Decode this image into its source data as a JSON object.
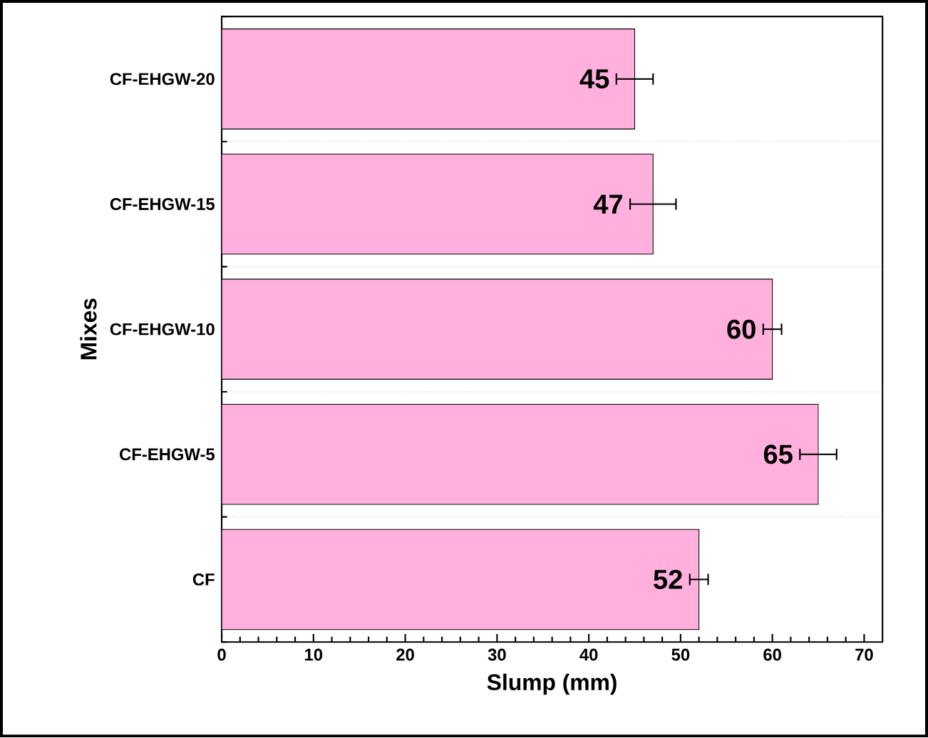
{
  "chart_data": {
    "type": "bar",
    "orientation": "horizontal",
    "xlabel": "Slump (mm)",
    "ylabel": "Mixes",
    "categories": [
      "CF-EHGW-20",
      "CF-EHGW-15",
      "CF-EHGW-10",
      "CF-EHGW-5",
      "CF"
    ],
    "values": [
      45,
      47,
      60,
      65,
      52
    ],
    "errors": [
      2,
      2.5,
      1,
      2,
      1
    ],
    "color": "#ffb0dc",
    "data_labels": true,
    "grid": "y",
    "xlim": [
      0,
      72
    ],
    "xticks": [
      0,
      10,
      20,
      30,
      40,
      50,
      60,
      70
    ]
  }
}
